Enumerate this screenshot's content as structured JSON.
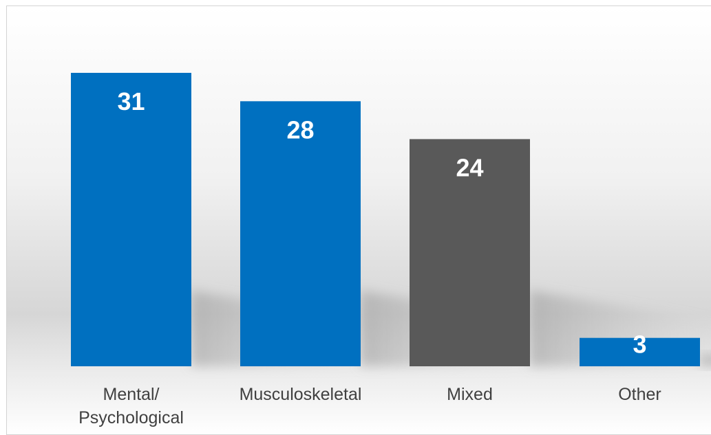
{
  "chart_data": {
    "type": "bar",
    "categories": [
      "Mental/\nPsychological",
      "Musculoskeletal",
      "Mixed",
      "Other"
    ],
    "values": [
      31,
      28,
      24,
      3
    ],
    "bar_colors": [
      "#0070c0",
      "#0070c0",
      "#595959",
      "#0070c0"
    ],
    "value_label_color": "#ffffff",
    "ylim": [
      0,
      31
    ],
    "grid": false,
    "legend": "none"
  }
}
